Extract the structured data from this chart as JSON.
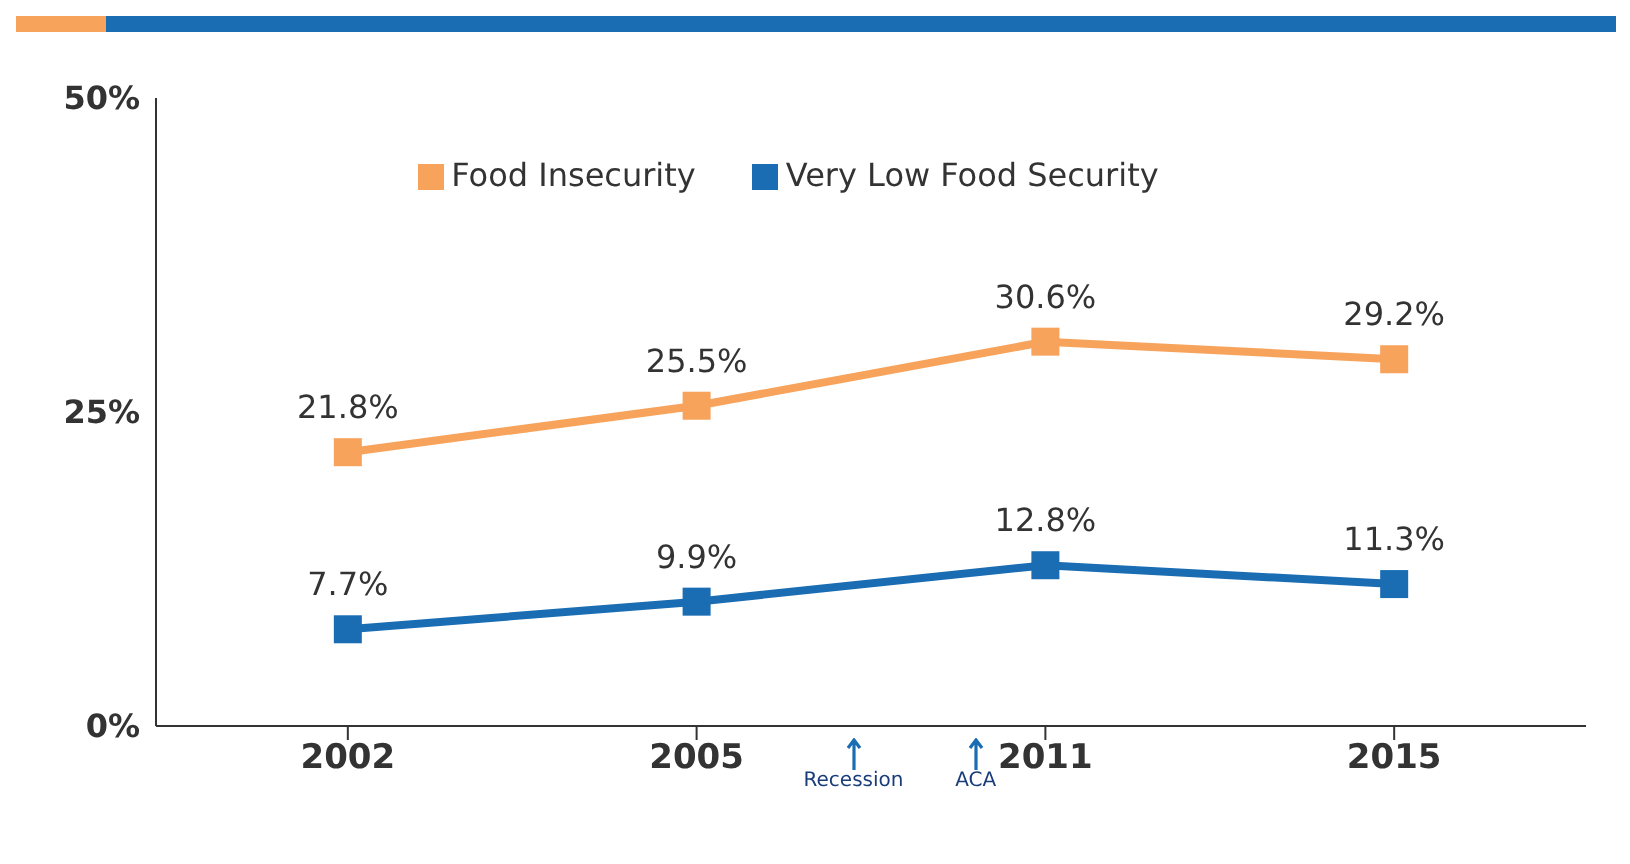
{
  "chart_data": {
    "type": "line",
    "categories": [
      "2002",
      "2005",
      "2011",
      "2015"
    ],
    "series": [
      {
        "name": "Food Insecurity",
        "color": "#f7a35c",
        "values": [
          21.8,
          25.5,
          30.6,
          29.2
        ],
        "value_labels": [
          "21.8%",
          "25.5%",
          "30.6%",
          "29.2%"
        ]
      },
      {
        "name": "Very Low Food Security",
        "color": "#1a6db3",
        "values": [
          7.7,
          9.9,
          12.8,
          11.3
        ],
        "value_labels": [
          "7.7%",
          "9.9%",
          "12.8%",
          "11.3%"
        ]
      }
    ],
    "ylim": [
      0,
      50
    ],
    "yticks": [
      {
        "value": 0,
        "label": "0%"
      },
      {
        "value": 25,
        "label": "25%"
      },
      {
        "value": 50,
        "label": "50%"
      }
    ],
    "grid": false,
    "legend": "top",
    "marker": "square",
    "line_style": "solid",
    "annotations": [
      "Recession",
      "ACA"
    ]
  }
}
